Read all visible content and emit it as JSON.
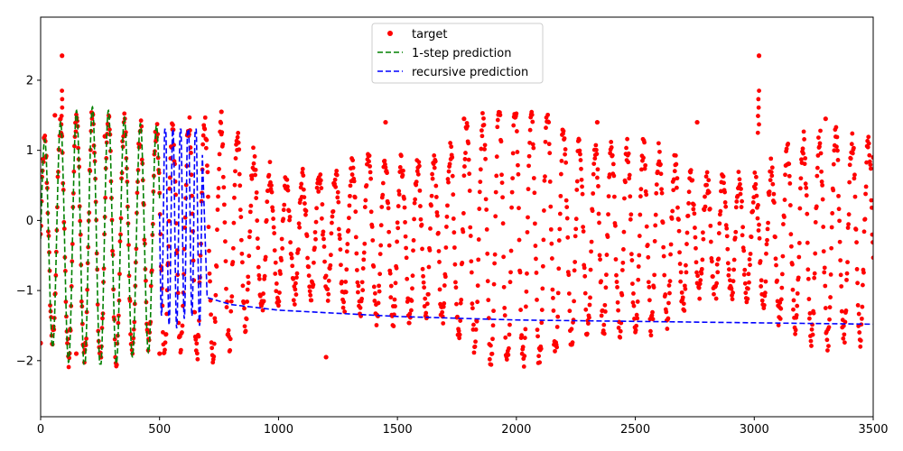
{
  "chart_data": {
    "type": "line",
    "title": "",
    "xlabel": "",
    "ylabel": "",
    "xlim": [
      0,
      3500
    ],
    "ylim": [
      -2.8,
      2.9
    ],
    "x_ticks": [
      0,
      500,
      1000,
      1500,
      2000,
      2500,
      3000,
      3500
    ],
    "x_tick_labels": [
      "0",
      "500",
      "1000",
      "1500",
      "2000",
      "2500",
      "3000",
      "3500"
    ],
    "y_ticks": [
      -2,
      -1,
      0,
      1,
      2
    ],
    "y_tick_labels": [
      "−2",
      "−1",
      "0",
      "1",
      "2"
    ],
    "grid": false,
    "legend_position": "upper center",
    "series": [
      {
        "name": "target",
        "style": "markers",
        "color": "#ff0000",
        "x_range": [
          0,
          3500
        ],
        "notes_pattern": "oscillating time series, period ~70, values roughly between -1.9 and 1.5 with spikes near x=90 and x=3020 reaching ~2.35",
        "key_points": [
          {
            "x": 0,
            "y": -1.75
          },
          {
            "x": 60,
            "y": 1.5
          },
          {
            "x": 90,
            "y": 2.35
          },
          {
            "x": 150,
            "y": -1.9
          },
          {
            "x": 270,
            "y": 1.2
          },
          {
            "x": 500,
            "y": -1.9
          },
          {
            "x": 760,
            "y": 1.55
          },
          {
            "x": 1200,
            "y": -1.95
          },
          {
            "x": 1450,
            "y": 1.4
          },
          {
            "x": 1780,
            "y": 1.45
          },
          {
            "x": 2340,
            "y": 1.4
          },
          {
            "x": 2760,
            "y": 1.4
          },
          {
            "x": 3020,
            "y": 2.35
          },
          {
            "x": 3300,
            "y": 1.45
          },
          {
            "x": 3500,
            "y": 0.9
          }
        ]
      },
      {
        "name": "1-step prediction",
        "style": "dashed",
        "color": "#008000",
        "x_range": [
          0,
          500
        ],
        "key_points": [
          {
            "x": 0,
            "y": -1.5
          },
          {
            "x": 30,
            "y": 1.4
          },
          {
            "x": 60,
            "y": -1.6
          },
          {
            "x": 90,
            "y": 1.75
          },
          {
            "x": 140,
            "y": -1.8
          },
          {
            "x": 220,
            "y": 1.2
          },
          {
            "x": 330,
            "y": 1.3
          },
          {
            "x": 400,
            "y": 1.35
          },
          {
            "x": 500,
            "y": 0.1
          }
        ]
      },
      {
        "name": "recursive prediction",
        "style": "dashed",
        "color": "#0000ff",
        "x_range": [
          500,
          3500
        ],
        "key_points": [
          {
            "x": 500,
            "y": 0.1
          },
          {
            "x": 530,
            "y": -1.85
          },
          {
            "x": 570,
            "y": 1.2
          },
          {
            "x": 600,
            "y": -1.8
          },
          {
            "x": 640,
            "y": 1.3
          },
          {
            "x": 670,
            "y": 0.5
          },
          {
            "x": 700,
            "y": -1.1
          },
          {
            "x": 800,
            "y": -1.2
          },
          {
            "x": 1000,
            "y": -1.28
          },
          {
            "x": 1500,
            "y": -1.37
          },
          {
            "x": 2000,
            "y": -1.42
          },
          {
            "x": 2500,
            "y": -1.44
          },
          {
            "x": 3000,
            "y": -1.46
          },
          {
            "x": 3500,
            "y": -1.48
          }
        ]
      }
    ]
  },
  "legend": {
    "items": [
      {
        "label": "target",
        "color": "#ff0000",
        "marker": "dot"
      },
      {
        "label": "1-step prediction",
        "color": "#008000",
        "marker": "dashed"
      },
      {
        "label": "recursive prediction",
        "color": "#0000ff",
        "marker": "dashed"
      }
    ]
  }
}
